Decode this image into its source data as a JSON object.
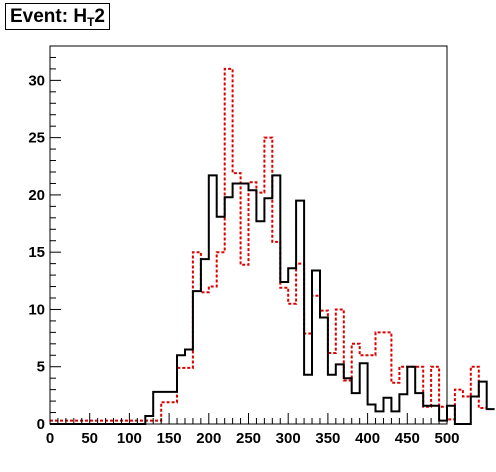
{
  "title": {
    "prefix": "Event: H",
    "subscript": "T",
    "suffix": "2"
  },
  "colors": {
    "series_a": "#000000",
    "series_b": "#dd0000"
  },
  "chart_data": {
    "type": "histogram",
    "bin_width": 10,
    "x_start": 0,
    "xlim": [
      0,
      500
    ],
    "ylim": [
      0,
      33
    ],
    "x_ticks": [
      0,
      50,
      100,
      150,
      200,
      250,
      300,
      350,
      400,
      450,
      500
    ],
    "y_ticks": [
      0,
      5,
      10,
      15,
      20,
      25,
      30
    ],
    "grid": false,
    "legend": "none",
    "series": [
      {
        "style": "solid",
        "values": [
          0,
          0,
          0,
          0,
          0,
          0,
          0,
          0,
          0,
          0,
          0,
          0,
          0.7,
          2.8,
          2.8,
          2.8,
          6.0,
          6.5,
          11.6,
          14.4,
          21.7,
          18.1,
          19.8,
          21.0,
          21.0,
          20.4,
          17.7,
          19.7,
          21.7,
          12.4,
          13.6,
          19.5,
          4.3,
          13.4,
          9.3,
          4.3,
          5.2,
          4.0,
          2.7,
          5.3,
          1.7,
          1.1,
          2.3,
          1.1,
          2.6,
          5.0,
          2.7,
          1.6,
          1.6,
          0.3,
          1.6,
          0,
          0,
          2.4,
          3.7,
          1.3
        ]
      },
      {
        "style": "dashed",
        "values": [
          0.3,
          0.3,
          0.3,
          0.3,
          0.3,
          0.3,
          0.3,
          0.3,
          0.3,
          0.3,
          0.3,
          0.3,
          0.3,
          0.3,
          1.9,
          1.9,
          4.9,
          4.9,
          15.0,
          11.5,
          12.0,
          15.0,
          31.0,
          21.9,
          13.9,
          21.1,
          20.2,
          25.0,
          15.9,
          11.9,
          10.5,
          14.0,
          7.9,
          11.2,
          9.9,
          6.2,
          10.0,
          3.8,
          7.0,
          6.0,
          6.0,
          8.0,
          8.0,
          3.6,
          5.0,
          5.0,
          5.0,
          1.5,
          5.0,
          1.5,
          0.4,
          3.0,
          2.4,
          5.0,
          1.4
        ]
      }
    ]
  }
}
